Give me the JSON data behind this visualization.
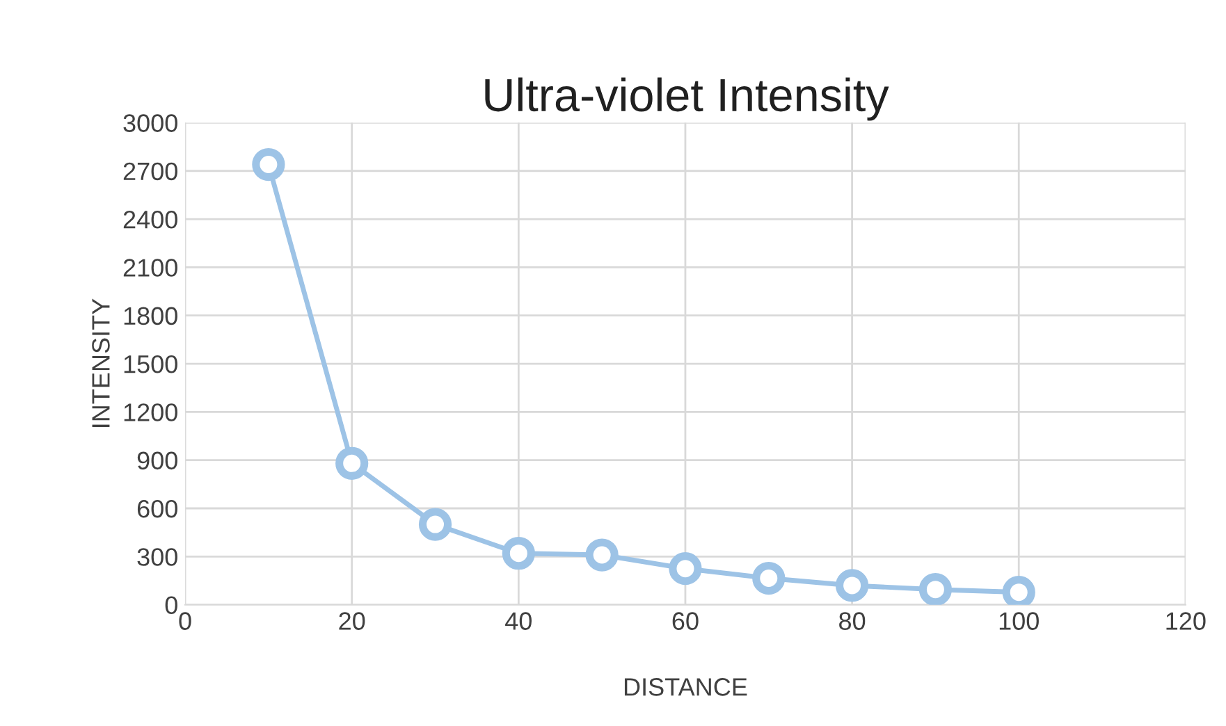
{
  "chart_data": {
    "type": "line",
    "title": "Ultra-violet Intensity",
    "xlabel": "DISTANCE",
    "ylabel": "INTENSITY",
    "x": [
      10,
      20,
      30,
      40,
      50,
      60,
      70,
      80,
      90,
      100
    ],
    "series": [
      {
        "color": "#9dc3e6",
        "values": [
          2740,
          880,
          500,
          320,
          310,
          225,
          165,
          120,
          95,
          78
        ]
      }
    ],
    "xlim": [
      0,
      120
    ],
    "xticks": [
      0,
      20,
      40,
      60,
      80,
      100,
      120
    ],
    "ylim": [
      0,
      3000
    ],
    "yticks": [
      0,
      300,
      600,
      900,
      1200,
      1500,
      1800,
      2100,
      2400,
      2700,
      3000
    ],
    "grid": true,
    "marker": "circle",
    "line_style": "solid"
  }
}
